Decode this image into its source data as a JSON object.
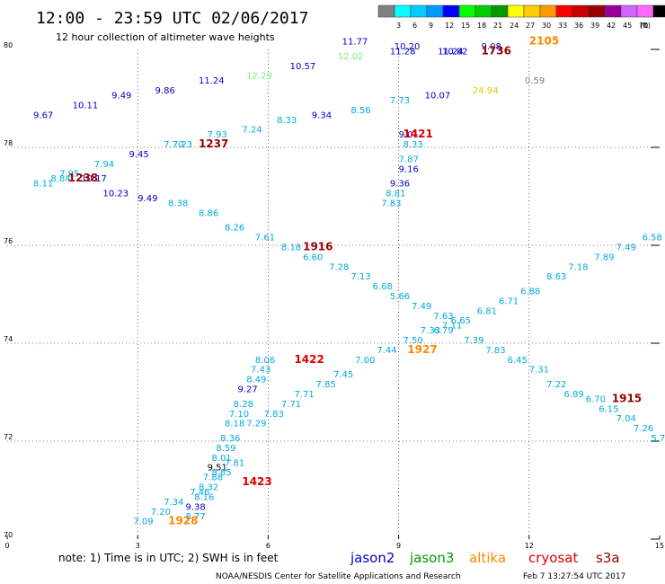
{
  "header": {
    "title": "12:00 - 23:59 UTC 02/06/2017",
    "subtitle": "12 hour collection of altimeter wave heights"
  },
  "legend_scale": {
    "unit": "(ft)",
    "swatches": [
      {
        "color": "#808080",
        "label": ""
      },
      {
        "color": "#00ffff",
        "label": "3"
      },
      {
        "color": "#00ccff",
        "label": "6"
      },
      {
        "color": "#0099ff",
        "label": "9"
      },
      {
        "color": "#0000ff",
        "label": "12"
      },
      {
        "color": "#00ff00",
        "label": "15"
      },
      {
        "color": "#00cc00",
        "label": "18"
      },
      {
        "color": "#009900",
        "label": "21"
      },
      {
        "color": "#ffff00",
        "label": "24"
      },
      {
        "color": "#ffcc00",
        "label": "27"
      },
      {
        "color": "#ff9900",
        "label": "30"
      },
      {
        "color": "#ff0000",
        "label": "33"
      },
      {
        "color": "#cc0000",
        "label": "36"
      },
      {
        "color": "#990000",
        "label": "39"
      },
      {
        "color": "#990099",
        "label": "42"
      },
      {
        "color": "#cc66ff",
        "label": "45"
      },
      {
        "color": "#ff66ff",
        "label": "70"
      },
      {
        "color": "#000000",
        "label": ""
      }
    ]
  },
  "footer": {
    "note": "note: 1) Time is in UTC; 2) SWH is in feet",
    "credit": "NOAA/NESDIS Center for Satellite Applications and Research",
    "timestamp": "Feb  7 13:27:54 UTC 2017"
  },
  "satellites": [
    {
      "name": "jason2",
      "color": "#0000cc"
    },
    {
      "name": "jason3",
      "color": "#009900"
    },
    {
      "name": "altika",
      "color": "#ff8800"
    },
    {
      "name": "cryosat",
      "color": "#dd0000"
    },
    {
      "name": "s3a",
      "color": "#990000"
    }
  ],
  "chart_data": {
    "type": "scatter",
    "xlabel": "",
    "ylabel": "",
    "x_ticks": [
      "0",
      "3",
      "6",
      "9",
      "12",
      "15"
    ],
    "y_ticks": [
      "70",
      "72",
      "74",
      "76",
      "78",
      "80"
    ],
    "xlim": [
      0,
      15
    ],
    "ylim": [
      70,
      80
    ],
    "grid": true,
    "points": [
      {
        "x": 0.6,
        "y": 78.6,
        "label": "9.67",
        "color": "#0000cc"
      },
      {
        "x": 1.5,
        "y": 78.8,
        "label": "10.11",
        "color": "#0000cc"
      },
      {
        "x": 2.4,
        "y": 79.0,
        "label": "9.49",
        "color": "#0000cc"
      },
      {
        "x": 3.4,
        "y": 79.1,
        "label": "9.86",
        "color": "#0000cc"
      },
      {
        "x": 4.4,
        "y": 79.3,
        "label": "11.24",
        "color": "#0000cc"
      },
      {
        "x": 5.5,
        "y": 79.4,
        "label": "12.29",
        "color": "#77ee77"
      },
      {
        "x": 6.5,
        "y": 79.6,
        "label": "10.57",
        "color": "#0000cc"
      },
      {
        "x": 7.6,
        "y": 79.8,
        "label": "12.02",
        "color": "#77ee77"
      },
      {
        "x": 7.7,
        "y": 80.1,
        "label": "11.77",
        "color": "#0000cc"
      },
      {
        "x": 8.9,
        "y": 80.0,
        "label": "10.20",
        "color": "#0000cc"
      },
      {
        "x": 8.8,
        "y": 79.9,
        "label": "11.28",
        "color": "#0000cc"
      },
      {
        "x": 9.9,
        "y": 79.9,
        "label": "11.24",
        "color": "#0000cc"
      },
      {
        "x": 10.0,
        "y": 79.9,
        "label": "10.82",
        "color": "#0000cc"
      },
      {
        "x": 10.9,
        "y": 80.0,
        "label": "9.08",
        "color": "#0000cc"
      },
      {
        "x": 11.9,
        "y": 79.3,
        "label": "0.59",
        "color": "#808080"
      },
      {
        "x": 10.7,
        "y": 79.1,
        "label": "24.94",
        "color": "#ddcc00"
      },
      {
        "x": 9.6,
        "y": 79.0,
        "label": "10.07",
        "color": "#0000cc"
      },
      {
        "x": 8.8,
        "y": 78.9,
        "label": "7.73",
        "color": "#00aadd"
      },
      {
        "x": 7.9,
        "y": 78.7,
        "label": "8.56",
        "color": "#00aadd"
      },
      {
        "x": 7.0,
        "y": 78.6,
        "label": "9.34",
        "color": "#0000cc"
      },
      {
        "x": 6.2,
        "y": 78.5,
        "label": "8.33",
        "color": "#00aadd"
      },
      {
        "x": 5.4,
        "y": 78.3,
        "label": "7.24",
        "color": "#00aadd"
      },
      {
        "x": 4.6,
        "y": 78.2,
        "label": "7.93",
        "color": "#00aadd"
      },
      {
        "x": 3.8,
        "y": 78.0,
        "label": "7.23",
        "color": "#00aadd"
      },
      {
        "x": 3.6,
        "y": 78.0,
        "label": "7.70",
        "color": "#00aadd"
      },
      {
        "x": 2.8,
        "y": 77.8,
        "label": "9.45",
        "color": "#0000cc"
      },
      {
        "x": 2.0,
        "y": 77.6,
        "label": "7.94",
        "color": "#00aadd"
      },
      {
        "x": 1.2,
        "y": 77.4,
        "label": "7.95",
        "color": "#00aadd"
      },
      {
        "x": 1.0,
        "y": 77.3,
        "label": "8.84",
        "color": "#00aadd"
      },
      {
        "x": 0.6,
        "y": 77.2,
        "label": "8.11",
        "color": "#00aadd"
      },
      {
        "x": 1.7,
        "y": 77.3,
        "label": "10.17",
        "color": "#0000cc"
      },
      {
        "x": 2.2,
        "y": 77.0,
        "label": "10.23",
        "color": "#0000cc"
      },
      {
        "x": 3.0,
        "y": 76.9,
        "label": "9.49",
        "color": "#0000cc"
      },
      {
        "x": 3.7,
        "y": 76.8,
        "label": "8.38",
        "color": "#00aadd"
      },
      {
        "x": 4.4,
        "y": 76.6,
        "label": "8.86",
        "color": "#00aadd"
      },
      {
        "x": 5.0,
        "y": 76.3,
        "label": "8.26",
        "color": "#00aadd"
      },
      {
        "x": 5.7,
        "y": 76.1,
        "label": "7.61",
        "color": "#00aadd"
      },
      {
        "x": 6.3,
        "y": 75.9,
        "label": "8.18",
        "color": "#00aadd"
      },
      {
        "x": 6.8,
        "y": 75.7,
        "label": "6.60",
        "color": "#00aadd"
      },
      {
        "x": 7.4,
        "y": 75.5,
        "label": "7.28",
        "color": "#00aadd"
      },
      {
        "x": 7.9,
        "y": 75.3,
        "label": "7.13",
        "color": "#00aadd"
      },
      {
        "x": 8.4,
        "y": 75.1,
        "label": "6.68",
        "color": "#00aadd"
      },
      {
        "x": 8.8,
        "y": 74.9,
        "label": "5.66",
        "color": "#00aadd"
      },
      {
        "x": 9.3,
        "y": 74.7,
        "label": "7.49",
        "color": "#00aadd"
      },
      {
        "x": 9.8,
        "y": 74.5,
        "label": "7.63",
        "color": "#00aadd"
      },
      {
        "x": 10.2,
        "y": 74.4,
        "label": "6.65",
        "color": "#00aadd"
      },
      {
        "x": 10.0,
        "y": 74.3,
        "label": "7.11",
        "color": "#00aadd"
      },
      {
        "x": 9.8,
        "y": 74.2,
        "label": "6.79",
        "color": "#00aadd"
      },
      {
        "x": 10.8,
        "y": 74.6,
        "label": "6.81",
        "color": "#00aadd"
      },
      {
        "x": 11.3,
        "y": 74.8,
        "label": "6.71",
        "color": "#00aadd"
      },
      {
        "x": 11.8,
        "y": 75.0,
        "label": "6.88",
        "color": "#00aadd"
      },
      {
        "x": 12.4,
        "y": 75.3,
        "label": "8.63",
        "color": "#00aadd"
      },
      {
        "x": 12.9,
        "y": 75.5,
        "label": "7.18",
        "color": "#00aadd"
      },
      {
        "x": 13.5,
        "y": 75.7,
        "label": "7.89",
        "color": "#00aadd"
      },
      {
        "x": 14.0,
        "y": 75.9,
        "label": "7.49",
        "color": "#00aadd"
      },
      {
        "x": 14.6,
        "y": 76.1,
        "label": "6.58",
        "color": "#00aadd"
      },
      {
        "x": 8.6,
        "y": 76.8,
        "label": "7.83",
        "color": "#00aadd"
      },
      {
        "x": 8.7,
        "y": 77.0,
        "label": "8.81",
        "color": "#00aadd"
      },
      {
        "x": 8.8,
        "y": 77.2,
        "label": "9.36",
        "color": "#0000cc"
      },
      {
        "x": 9.0,
        "y": 77.5,
        "label": "9.16",
        "color": "#0000cc"
      },
      {
        "x": 9.0,
        "y": 77.7,
        "label": "7.87",
        "color": "#00aadd"
      },
      {
        "x": 9.1,
        "y": 78.0,
        "label": "8.33",
        "color": "#00aadd"
      },
      {
        "x": 9.0,
        "y": 78.2,
        "label": "9.01",
        "color": "#0000cc"
      },
      {
        "x": 9.5,
        "y": 74.2,
        "label": "7.33",
        "color": "#00aadd"
      },
      {
        "x": 9.1,
        "y": 74.0,
        "label": "7.50",
        "color": "#00aadd"
      },
      {
        "x": 8.5,
        "y": 73.8,
        "label": "7.44",
        "color": "#00aadd"
      },
      {
        "x": 8.0,
        "y": 73.6,
        "label": "7.00",
        "color": "#00aadd"
      },
      {
        "x": 7.5,
        "y": 73.3,
        "label": "7.45",
        "color": "#00aadd"
      },
      {
        "x": 7.1,
        "y": 73.1,
        "label": "7.85",
        "color": "#00aadd"
      },
      {
        "x": 6.6,
        "y": 72.9,
        "label": "7.71",
        "color": "#00aadd"
      },
      {
        "x": 6.3,
        "y": 72.7,
        "label": "7.71",
        "color": "#00aadd"
      },
      {
        "x": 5.9,
        "y": 72.5,
        "label": "7.83",
        "color": "#00aadd"
      },
      {
        "x": 5.5,
        "y": 72.3,
        "label": "7.29",
        "color": "#00aadd"
      },
      {
        "x": 10.5,
        "y": 74.0,
        "label": "7.39",
        "color": "#00aadd"
      },
      {
        "x": 11.0,
        "y": 73.8,
        "label": "7.83",
        "color": "#00aadd"
      },
      {
        "x": 11.5,
        "y": 73.6,
        "label": "6.45",
        "color": "#00aadd"
      },
      {
        "x": 12.0,
        "y": 73.4,
        "label": "7.31",
        "color": "#00aadd"
      },
      {
        "x": 12.4,
        "y": 73.1,
        "label": "7.22",
        "color": "#00aadd"
      },
      {
        "x": 12.8,
        "y": 72.9,
        "label": "6.89",
        "color": "#00aadd"
      },
      {
        "x": 13.3,
        "y": 72.8,
        "label": "6.70",
        "color": "#00aadd"
      },
      {
        "x": 13.6,
        "y": 72.6,
        "label": "6.15",
        "color": "#00aadd"
      },
      {
        "x": 14.0,
        "y": 72.4,
        "label": "7.04",
        "color": "#00aadd"
      },
      {
        "x": 14.4,
        "y": 72.2,
        "label": "7.26",
        "color": "#00aadd"
      },
      {
        "x": 14.8,
        "y": 72.0,
        "label": "5.72",
        "color": "#00aadd"
      },
      {
        "x": 5.7,
        "y": 73.6,
        "label": "8.06",
        "color": "#00aadd"
      },
      {
        "x": 5.6,
        "y": 73.4,
        "label": "7.43",
        "color": "#00aadd"
      },
      {
        "x": 5.5,
        "y": 73.2,
        "label": "8.49",
        "color": "#00aadd"
      },
      {
        "x": 5.3,
        "y": 73.0,
        "label": "9.27",
        "color": "#0000cc"
      },
      {
        "x": 5.2,
        "y": 72.7,
        "label": "8.28",
        "color": "#00aadd"
      },
      {
        "x": 5.1,
        "y": 72.5,
        "label": "7.10",
        "color": "#00aadd"
      },
      {
        "x": 5.0,
        "y": 72.3,
        "label": "8.18",
        "color": "#00aadd"
      },
      {
        "x": 4.9,
        "y": 72.0,
        "label": "8.36",
        "color": "#00aadd"
      },
      {
        "x": 4.8,
        "y": 71.8,
        "label": "8.59",
        "color": "#00aadd"
      },
      {
        "x": 4.7,
        "y": 71.6,
        "label": "8.01",
        "color": "#00aadd"
      },
      {
        "x": 4.6,
        "y": 71.4,
        "label": "9.51",
        "color": "#000000"
      },
      {
        "x": 5.0,
        "y": 71.5,
        "label": "7.81",
        "color": "#00aadd"
      },
      {
        "x": 4.7,
        "y": 71.3,
        "label": "8.85",
        "color": "#00aadd"
      },
      {
        "x": 4.5,
        "y": 71.2,
        "label": "7.88",
        "color": "#00aadd"
      },
      {
        "x": 4.4,
        "y": 71.0,
        "label": "8.32",
        "color": "#00aadd"
      },
      {
        "x": 4.2,
        "y": 70.9,
        "label": "7.46",
        "color": "#00aadd"
      },
      {
        "x": 4.3,
        "y": 70.8,
        "label": "8.16",
        "color": "#00aadd"
      },
      {
        "x": 4.1,
        "y": 70.6,
        "label": "9.38",
        "color": "#0000cc"
      },
      {
        "x": 3.6,
        "y": 70.7,
        "label": "7.34",
        "color": "#00aadd"
      },
      {
        "x": 3.3,
        "y": 70.5,
        "label": "7.20",
        "color": "#00aadd"
      },
      {
        "x": 4.1,
        "y": 70.4,
        "label": "8.77",
        "color": "#00aadd"
      },
      {
        "x": 2.9,
        "y": 70.3,
        "label": "7.09",
        "color": "#00aadd"
      }
    ],
    "time_labels": [
      {
        "x": 4.4,
        "y": 78.0,
        "label": "1237",
        "color": "#990000"
      },
      {
        "x": 1.4,
        "y": 77.3,
        "label": "1238",
        "color": "#990000"
      },
      {
        "x": 10.9,
        "y": 79.9,
        "label": "1736",
        "color": "#990000"
      },
      {
        "x": 12.0,
        "y": 80.1,
        "label": "2105",
        "color": "#ff8800"
      },
      {
        "x": 9.1,
        "y": 78.2,
        "label": "1421",
        "color": "#dd0000"
      },
      {
        "x": 6.8,
        "y": 75.9,
        "label": "1916",
        "color": "#990000"
      },
      {
        "x": 6.6,
        "y": 73.6,
        "label": "1422",
        "color": "#dd0000"
      },
      {
        "x": 9.2,
        "y": 73.8,
        "label": "1927",
        "color": "#ff8800"
      },
      {
        "x": 13.9,
        "y": 72.8,
        "label": "1915",
        "color": "#990000"
      },
      {
        "x": 5.4,
        "y": 71.1,
        "label": "1423",
        "color": "#dd0000"
      },
      {
        "x": 3.7,
        "y": 70.3,
        "label": "1928",
        "color": "#ff8800"
      }
    ]
  }
}
